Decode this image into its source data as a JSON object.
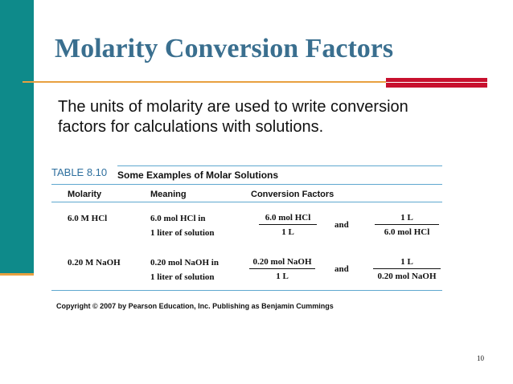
{
  "slide": {
    "title": "Molarity Conversion Factors",
    "intro": "The units of molarity are used to write conversion factors for calculations with solutions.",
    "page_number": "10",
    "copyright": "Copyright ©  2007  by Pearson Education, Inc. Publishing as Benjamin Cummings"
  },
  "table": {
    "label": "TABLE 8.10",
    "title": "Some Examples of Molar Solutions",
    "headers": [
      "Molarity",
      "Meaning",
      "Conversion Factors"
    ],
    "rows": [
      {
        "molarity": "6.0 M HCl",
        "meaning_line1": "6.0 mol HCl in",
        "meaning_line2": "1 liter of solution",
        "factor1_num": "6.0 mol HCl",
        "factor1_den": "1 L",
        "conj": "and",
        "factor2_num": "1 L",
        "factor2_den": "6.0 mol HCl"
      },
      {
        "molarity": "0.20 M NaOH",
        "meaning_line1": "0.20 mol NaOH in",
        "meaning_line2": "1 liter of solution",
        "factor1_num": "0.20 mol NaOH",
        "factor1_den": "1 L",
        "conj": "and",
        "factor2_num": "1 L",
        "factor2_den": "0.20 mol NaOH"
      }
    ]
  },
  "colors": {
    "accent_teal": "#0e8a8a",
    "title_blue": "#3a6f8f",
    "rule_orange": "#e8a040",
    "rule_red": "#c8102e",
    "table_rule_blue": "#5fa8cf"
  }
}
